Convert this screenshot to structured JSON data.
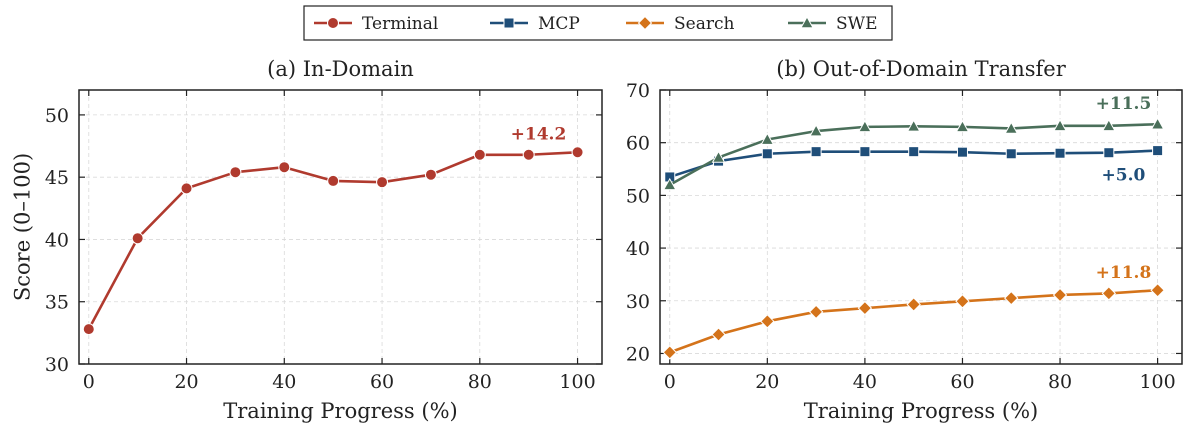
{
  "colors": {
    "Terminal": "#b03a2e",
    "MCP": "#1f4e79",
    "Search": "#d4731a",
    "SWE": "#4a6f5a"
  },
  "legend": {
    "entries": [
      {
        "name": "Terminal",
        "marker": "circle"
      },
      {
        "name": "MCP",
        "marker": "square"
      },
      {
        "name": "Search",
        "marker": "diamond"
      },
      {
        "name": "SWE",
        "marker": "triangle"
      }
    ]
  },
  "chart_data": [
    {
      "type": "line",
      "title": "(a) In-Domain",
      "xlabel": "Training Progress (%)",
      "ylabel": "Score (0–100)",
      "xlim": [
        -2,
        105
      ],
      "ylim": [
        30,
        52
      ],
      "xticks": [
        0,
        20,
        40,
        60,
        80,
        100
      ],
      "yticks": [
        30,
        35,
        40,
        45,
        50
      ],
      "grid": true,
      "x": [
        0,
        10,
        20,
        30,
        40,
        50,
        60,
        70,
        80,
        90,
        100
      ],
      "series": [
        {
          "name": "Terminal",
          "marker": "circle",
          "values": [
            32.8,
            40.1,
            44.1,
            45.4,
            45.8,
            44.7,
            44.6,
            45.2,
            46.8,
            46.8,
            47.0
          ]
        }
      ],
      "annotations": [
        {
          "text": "+14.2",
          "x": 92,
          "y": 48.5,
          "series": "Terminal"
        }
      ]
    },
    {
      "type": "line",
      "title": "(b) Out-of-Domain Transfer",
      "xlabel": "Training Progress (%)",
      "ylabel": "",
      "xlim": [
        -2,
        105
      ],
      "ylim": [
        18,
        70
      ],
      "xticks": [
        0,
        20,
        40,
        60,
        80,
        100
      ],
      "yticks": [
        20,
        30,
        40,
        50,
        60,
        70
      ],
      "grid": true,
      "x": [
        0,
        10,
        20,
        30,
        40,
        50,
        60,
        70,
        80,
        90,
        100
      ],
      "series": [
        {
          "name": "MCP",
          "marker": "square",
          "values": [
            53.5,
            56.5,
            57.9,
            58.3,
            58.3,
            58.3,
            58.2,
            57.9,
            58.0,
            58.1,
            58.5
          ]
        },
        {
          "name": "Search",
          "marker": "diamond",
          "values": [
            20.2,
            23.6,
            26.1,
            27.9,
            28.6,
            29.3,
            29.9,
            30.5,
            31.1,
            31.4,
            32.0
          ]
        },
        {
          "name": "SWE",
          "marker": "triangle",
          "values": [
            52.0,
            57.2,
            60.6,
            62.2,
            63.0,
            63.1,
            63.0,
            62.7,
            63.2,
            63.2,
            63.5
          ]
        }
      ],
      "annotations": [
        {
          "text": "+11.5",
          "x": 93,
          "y": 67.5,
          "series": "SWE"
        },
        {
          "text": "+5.0",
          "x": 93,
          "y": 54.0,
          "series": "MCP"
        },
        {
          "text": "+11.8",
          "x": 93,
          "y": 35.5,
          "series": "Search"
        }
      ]
    }
  ]
}
